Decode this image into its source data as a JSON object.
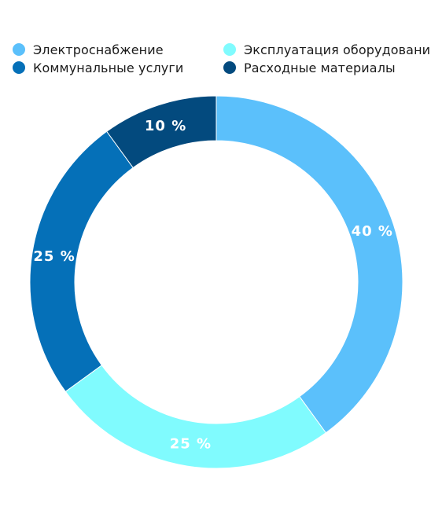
{
  "chart_data": {
    "type": "pie",
    "variant": "donut",
    "legend_position": "top",
    "categories": [
      "Электроснабжение",
      "Эксплуатация оборудования",
      "Коммунальные услуги",
      "Расходные материалы"
    ],
    "values": [
      40,
      25,
      25,
      10
    ],
    "data_labels": [
      "40 %",
      "25 %",
      "25 %",
      "10 %"
    ],
    "colors": [
      "#5bc0fb",
      "#80fbfe",
      "#0570b8",
      "#034a7e"
    ]
  }
}
